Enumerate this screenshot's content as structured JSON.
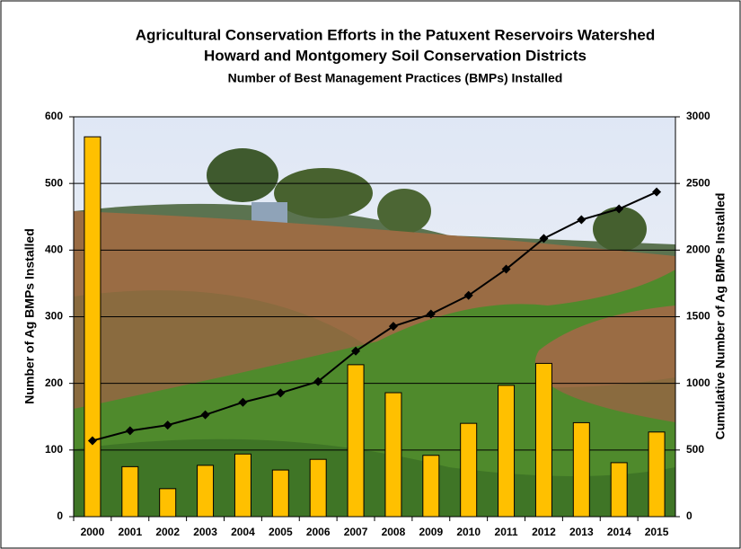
{
  "chart_data": {
    "type": "combo",
    "title": "Agricultural Conservation Efforts in the Patuxent Reservoirs Watershed",
    "subtitle": "Howard and Montgomery Soil Conservation Districts",
    "subtitle2": "Number of Best Management Practices (BMPs) Installed",
    "ylabel": "Number of Ag BMPs Installed",
    "y2label": "Cumulative  Number of Ag BMPs Installed",
    "categories": [
      "2000",
      "2001",
      "2002",
      "2003",
      "2004",
      "2005",
      "2006",
      "2007",
      "2008",
      "2009",
      "2010",
      "2011",
      "2012",
      "2013",
      "2014",
      "2015"
    ],
    "series": [
      {
        "type": "bar",
        "axis": "y",
        "color": "#ffc000",
        "values": [
          570,
          75,
          42,
          77,
          94,
          70,
          86,
          228,
          186,
          92,
          140,
          197,
          230,
          141,
          81,
          127
        ]
      },
      {
        "type": "line",
        "axis": "y2",
        "color": "#000000",
        "values": [
          570,
          645,
          687,
          764,
          858,
          928,
          1014,
          1242,
          1428,
          1520,
          1660,
          1857,
          2087,
          2228,
          2309,
          2436
        ]
      }
    ],
    "ylim": [
      0,
      600
    ],
    "yticks": [
      0,
      100,
      200,
      300,
      400,
      500,
      600
    ],
    "y2lim": [
      0,
      3000
    ],
    "y2ticks": [
      0,
      500,
      1000,
      1500,
      2000,
      2500,
      3000
    ],
    "grid": true
  }
}
